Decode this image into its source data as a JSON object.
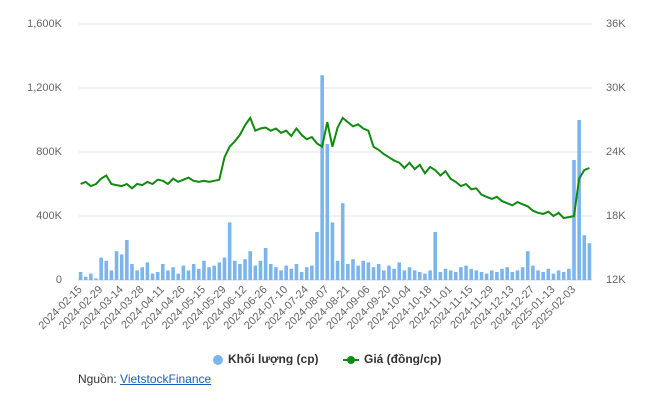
{
  "chart_data": {
    "type": "bar_line",
    "categories": [
      "2024-02-15",
      null,
      null,
      null,
      "2024-02-29",
      null,
      null,
      null,
      "2024-03-14",
      null,
      null,
      null,
      "2024-03-28",
      null,
      null,
      null,
      "2024-04-11",
      null,
      null,
      null,
      "2024-04-26",
      null,
      null,
      null,
      "2024-05-15",
      null,
      null,
      null,
      "2024-05-29",
      null,
      null,
      null,
      "2024-06-12",
      null,
      null,
      null,
      "2024-06-26",
      null,
      null,
      null,
      "2024-07-10",
      null,
      null,
      null,
      "2024-07-24",
      null,
      null,
      null,
      "2024-08-07",
      null,
      null,
      null,
      "2024-08-21",
      null,
      null,
      null,
      "2024-09-06",
      null,
      null,
      null,
      "2024-09-20",
      null,
      null,
      null,
      "2024-10-04",
      null,
      null,
      null,
      "2024-10-18",
      null,
      null,
      null,
      "2024-11-01",
      null,
      null,
      null,
      "2024-11-15",
      null,
      null,
      null,
      "2024-11-29",
      null,
      null,
      null,
      "2024-12-13",
      null,
      null,
      null,
      "2024-12-27",
      null,
      null,
      null,
      "2025-01-13",
      null,
      null,
      null,
      "2025-02-03",
      null,
      null,
      null
    ],
    "series": [
      {
        "name": "Khối lượng (cp)",
        "color": "#7cb5ec",
        "axis": "y",
        "values": [
          50,
          20,
          40,
          10,
          140,
          120,
          60,
          180,
          160,
          250,
          100,
          60,
          80,
          110,
          40,
          50,
          100,
          60,
          80,
          40,
          90,
          60,
          100,
          70,
          120,
          80,
          90,
          110,
          140,
          360,
          120,
          100,
          130,
          180,
          90,
          120,
          200,
          100,
          80,
          60,
          90,
          70,
          100,
          50,
          80,
          90,
          300,
          1280,
          850,
          360,
          120,
          480,
          100,
          130,
          90,
          120,
          110,
          80,
          100,
          60,
          90,
          70,
          110,
          60,
          80,
          60,
          50,
          40,
          60,
          300,
          50,
          70,
          60,
          50,
          80,
          90,
          70,
          60,
          50,
          40,
          60,
          50,
          70,
          80,
          50,
          60,
          80,
          180,
          90,
          60,
          50,
          70,
          40,
          60,
          50,
          70,
          750,
          1000,
          280,
          230
        ]
      },
      {
        "name": "Giá (đồng/cp)",
        "color": "#118a11",
        "axis": "y2",
        "values": [
          21.0,
          21.2,
          20.8,
          21.0,
          21.5,
          21.8,
          21.0,
          20.9,
          20.8,
          21.0,
          20.6,
          21.0,
          20.9,
          21.2,
          21.0,
          21.4,
          21.3,
          21.0,
          21.5,
          21.2,
          21.4,
          21.6,
          21.3,
          21.2,
          21.3,
          21.2,
          21.3,
          21.4,
          23.5,
          24.5,
          25.0,
          25.6,
          26.5,
          27.2,
          26.0,
          26.2,
          26.3,
          26.0,
          26.2,
          25.8,
          26.0,
          25.5,
          26.2,
          25.6,
          25.2,
          25.4,
          24.8,
          24.5,
          26.8,
          24.5,
          26.3,
          27.2,
          26.8,
          26.4,
          26.6,
          26.2,
          26.0,
          24.5,
          24.2,
          23.8,
          23.5,
          23.2,
          23.0,
          22.5,
          23.0,
          22.4,
          22.8,
          22.0,
          22.6,
          22.3,
          21.8,
          22.2,
          21.5,
          21.2,
          20.8,
          21.0,
          20.5,
          20.6,
          20.0,
          19.8,
          19.6,
          19.8,
          19.4,
          19.2,
          19.0,
          19.3,
          19.1,
          18.9,
          18.5,
          18.3,
          18.2,
          18.4,
          18.0,
          18.3,
          17.8,
          17.9,
          18.0,
          21.5,
          22.3,
          22.5
        ]
      }
    ],
    "ylim": [
      0,
      1600
    ],
    "yticks": [
      0,
      {
        "value": 400,
        "label": "400K"
      },
      {
        "value": 800,
        "label": "800K"
      },
      {
        "value": 1200,
        "label": "1,200K"
      },
      {
        "value": 1600,
        "label": "1,600K"
      }
    ],
    "y2lim": [
      12,
      36
    ],
    "y2ticks": [
      {
        "value": 12,
        "label": "12K"
      },
      {
        "value": 18,
        "label": "18K"
      },
      {
        "value": 24,
        "label": "24K"
      },
      {
        "value": 30,
        "label": "30K"
      },
      {
        "value": 36,
        "label": "36K"
      }
    ],
    "grid": true,
    "legend": "bottom"
  },
  "source": {
    "label": "Nguồn:",
    "link": "VietstockFinance"
  }
}
